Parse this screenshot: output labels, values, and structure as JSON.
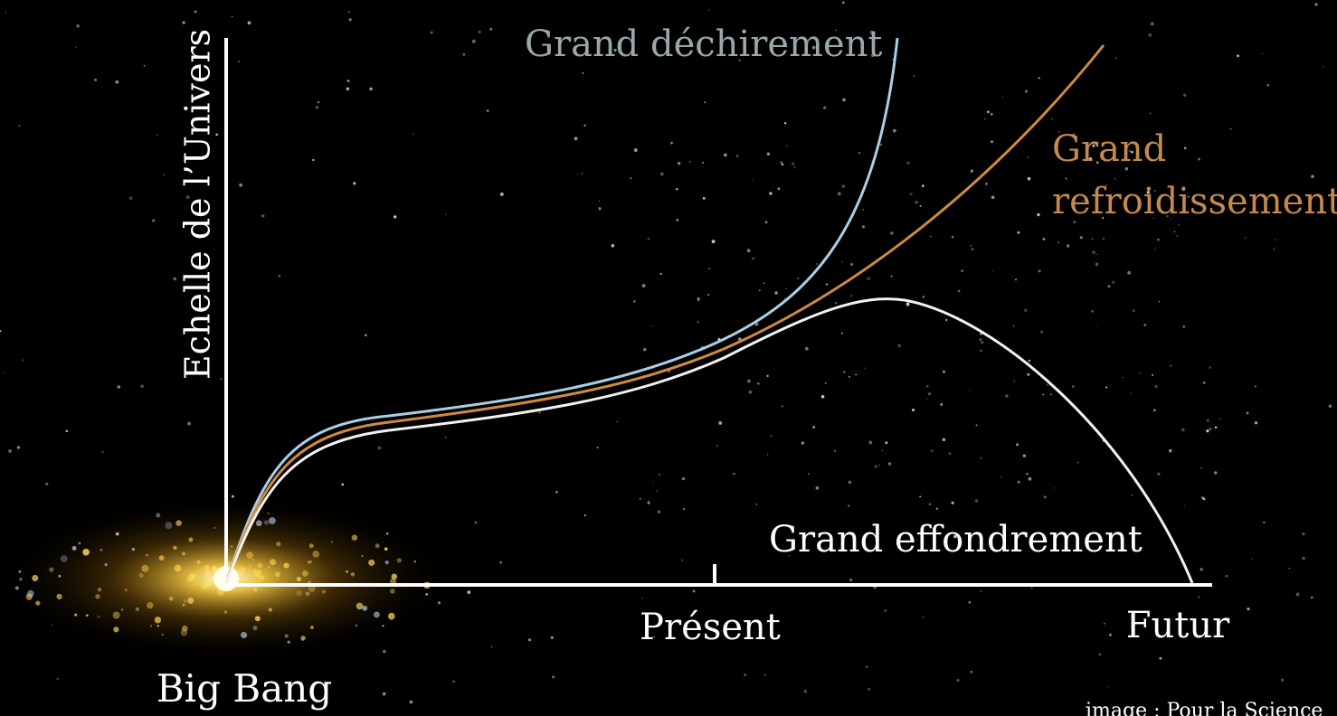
{
  "diagram": {
    "y_axis_label": "Echelle de l’Univers",
    "x_axis_labels": {
      "start": "Big Bang",
      "middle": "Présent",
      "end": "Futur"
    },
    "curves": [
      {
        "label": "Grand déchirement"
      },
      {
        "label_lines": [
          "Grand",
          "refroidissement"
        ]
      },
      {
        "label": "Grand effondrement"
      }
    ],
    "credit": "image : Pour la Science"
  }
}
